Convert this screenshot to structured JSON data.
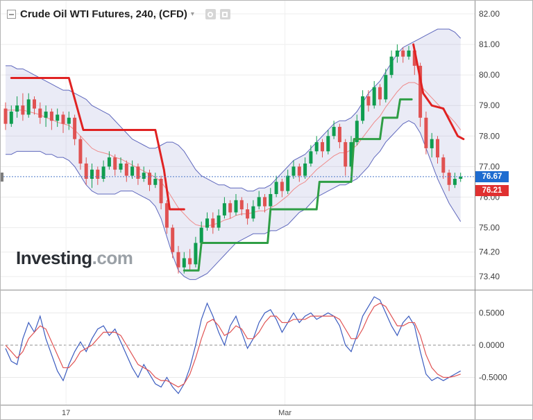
{
  "header": {
    "title": "Crude Oil WTI Futures, 240, (CFD)",
    "caret": "▾"
  },
  "watermark": {
    "brand": "Investing",
    "suffix": ".com"
  },
  "price_axis": {
    "labels": [
      {
        "text": "82.00",
        "value": 82.0
      },
      {
        "text": "81.00",
        "value": 81.0
      },
      {
        "text": "80.00",
        "value": 80.0
      },
      {
        "text": "79.00",
        "value": 79.0
      },
      {
        "text": "78.00",
        "value": 78.0
      },
      {
        "text": "77.00",
        "value": 77.0
      },
      {
        "text": "76.00",
        "value": 76.0
      },
      {
        "text": "75.00",
        "value": 75.0
      },
      {
        "text": "74.20",
        "value": 74.2
      },
      {
        "text": "73.40",
        "value": 73.4
      }
    ],
    "last_tag": {
      "text": "76.67",
      "value": 76.67,
      "color": "#1e6cd0"
    },
    "secondary_tag": {
      "text": "76.21",
      "value": 76.21,
      "color": "#e03030"
    }
  },
  "oscillator_axis": {
    "labels": [
      {
        "text": "0.5000",
        "value": 0.5
      },
      {
        "text": "0.0000",
        "value": 0
      },
      {
        "text": "-0.5000",
        "value": -0.5
      }
    ]
  },
  "time_axis": {
    "labels": [
      {
        "text": "17",
        "index": 10.5
      },
      {
        "text": "Mar",
        "index": 48.5
      }
    ]
  },
  "chart_data": {
    "type": "candlestick",
    "title": "Crude Oil WTI Futures, 240, (CFD)",
    "instrument": "Crude Oil WTI Futures",
    "interval": "240",
    "market": "CFD",
    "colors": {
      "up": "#0f9d4f",
      "down": "#e05252",
      "band_line": "#5f68bd",
      "band_fill": "rgba(95,104,189,0.13)",
      "mid_line": "#ef8a8a",
      "trend_red": "#e02222",
      "trend_green": "#2f9e45",
      "last_line": "#4a78c9"
    },
    "panes": [
      {
        "name": "price",
        "ylim": [
          72.9,
          82.4
        ],
        "gridline_prices": [
          82.0,
          81.0,
          80.0,
          79.0,
          78.0,
          77.0,
          76.0,
          75.0,
          74.2,
          73.4
        ],
        "last_price": 76.67,
        "secondary_price": 76.21,
        "candles": [
          [
            78.9,
            79.1,
            78.2,
            78.4
          ],
          [
            78.4,
            79.0,
            78.3,
            78.8
          ],
          [
            78.8,
            79.3,
            78.6,
            79.0
          ],
          [
            79.0,
            79.4,
            78.5,
            78.7
          ],
          [
            78.7,
            79.4,
            78.6,
            79.2
          ],
          [
            79.2,
            79.3,
            78.7,
            78.9
          ],
          [
            78.9,
            79.1,
            78.4,
            78.6
          ],
          [
            78.6,
            79.0,
            78.3,
            78.8
          ],
          [
            78.8,
            78.9,
            78.2,
            78.5
          ],
          [
            78.5,
            78.9,
            78.3,
            78.7
          ],
          [
            78.7,
            78.8,
            78.1,
            78.4
          ],
          [
            78.4,
            78.8,
            78.2,
            78.6
          ],
          [
            78.6,
            78.7,
            77.7,
            77.9
          ],
          [
            77.9,
            78.0,
            76.9,
            77.1
          ],
          [
            77.1,
            77.3,
            76.4,
            76.6
          ],
          [
            76.6,
            77.1,
            76.3,
            76.9
          ],
          [
            76.9,
            77.0,
            76.4,
            76.6
          ],
          [
            76.6,
            77.2,
            76.5,
            77.0
          ],
          [
            77.0,
            77.5,
            76.9,
            77.3
          ],
          [
            77.3,
            77.4,
            76.7,
            76.9
          ],
          [
            76.9,
            77.3,
            76.8,
            77.1
          ],
          [
            77.1,
            77.2,
            76.5,
            76.7
          ],
          [
            76.7,
            77.2,
            76.6,
            77.0
          ],
          [
            77.0,
            77.1,
            76.4,
            76.6
          ],
          [
            76.6,
            77.0,
            76.5,
            76.8
          ],
          [
            76.8,
            76.9,
            76.2,
            76.4
          ],
          [
            76.4,
            76.8,
            76.3,
            76.6
          ],
          [
            76.6,
            76.7,
            75.6,
            75.8
          ],
          [
            75.8,
            75.9,
            74.8,
            75.0
          ],
          [
            75.0,
            75.1,
            74.0,
            74.2
          ],
          [
            74.2,
            74.4,
            73.5,
            73.7
          ],
          [
            73.7,
            74.2,
            73.5,
            74.0
          ],
          [
            74.0,
            74.3,
            73.6,
            73.8
          ],
          [
            73.8,
            74.7,
            73.7,
            74.5
          ],
          [
            74.5,
            75.2,
            74.4,
            75.0
          ],
          [
            75.0,
            75.5,
            74.9,
            75.3
          ],
          [
            75.3,
            75.5,
            74.8,
            75.0
          ],
          [
            75.0,
            75.6,
            74.9,
            75.4
          ],
          [
            75.4,
            76.0,
            75.3,
            75.8
          ],
          [
            75.8,
            75.9,
            75.3,
            75.5
          ],
          [
            75.5,
            76.1,
            75.4,
            75.9
          ],
          [
            75.9,
            76.0,
            75.4,
            75.6
          ],
          [
            75.6,
            75.8,
            75.1,
            75.3
          ],
          [
            75.3,
            75.9,
            75.2,
            75.7
          ],
          [
            75.7,
            76.2,
            75.6,
            76.0
          ],
          [
            76.0,
            76.1,
            75.5,
            75.7
          ],
          [
            75.7,
            76.3,
            75.6,
            76.1
          ],
          [
            76.1,
            76.7,
            76.0,
            76.5
          ],
          [
            76.5,
            76.6,
            76.0,
            76.2
          ],
          [
            76.2,
            76.9,
            76.1,
            76.7
          ],
          [
            76.7,
            77.2,
            76.6,
            77.0
          ],
          [
            77.0,
            77.1,
            76.5,
            76.7
          ],
          [
            76.7,
            77.3,
            76.6,
            77.1
          ],
          [
            77.1,
            77.7,
            77.0,
            77.5
          ],
          [
            77.5,
            78.0,
            77.4,
            77.8
          ],
          [
            77.8,
            77.9,
            77.3,
            77.5
          ],
          [
            77.5,
            78.2,
            77.4,
            78.0
          ],
          [
            78.0,
            78.5,
            77.9,
            78.3
          ],
          [
            78.3,
            78.4,
            77.6,
            77.8
          ],
          [
            77.8,
            77.9,
            76.7,
            77.0
          ],
          [
            77.0,
            78.0,
            76.9,
            77.8
          ],
          [
            77.8,
            78.7,
            77.7,
            78.5
          ],
          [
            78.5,
            79.5,
            78.4,
            79.3
          ],
          [
            79.3,
            79.5,
            78.8,
            79.0
          ],
          [
            79.0,
            79.8,
            78.9,
            79.6
          ],
          [
            79.6,
            79.7,
            79.0,
            79.2
          ],
          [
            79.2,
            80.2,
            79.1,
            80.0
          ],
          [
            80.0,
            80.8,
            79.9,
            80.6
          ],
          [
            80.6,
            81.0,
            80.4,
            80.8
          ],
          [
            80.8,
            80.9,
            80.4,
            80.6
          ],
          [
            80.6,
            80.95,
            80.5,
            80.8
          ],
          [
            80.8,
            80.9,
            80.0,
            80.3
          ],
          [
            80.3,
            80.4,
            78.3,
            78.6
          ],
          [
            78.6,
            78.8,
            77.4,
            77.6
          ],
          [
            77.6,
            78.1,
            77.3,
            77.9
          ],
          [
            77.9,
            78.0,
            77.1,
            77.3
          ],
          [
            77.3,
            77.4,
            76.6,
            76.8
          ],
          [
            76.8,
            76.9,
            76.2,
            76.4
          ],
          [
            76.4,
            76.8,
            76.3,
            76.6
          ],
          [
            76.6,
            76.8,
            76.5,
            76.67
          ]
        ],
        "bollinger": {
          "upper": [
            80.3,
            80.3,
            80.2,
            80.2,
            80.1,
            80.0,
            79.9,
            79.8,
            79.7,
            79.6,
            79.5,
            79.5,
            79.4,
            79.3,
            79.2,
            79.0,
            78.9,
            78.8,
            78.7,
            78.5,
            78.3,
            78.1,
            77.9,
            77.8,
            77.7,
            77.6,
            77.6,
            77.7,
            77.8,
            77.8,
            77.7,
            77.5,
            77.2,
            76.9,
            76.7,
            76.6,
            76.5,
            76.4,
            76.4,
            76.3,
            76.3,
            76.3,
            76.2,
            76.2,
            76.3,
            76.3,
            76.4,
            76.6,
            76.8,
            77.0,
            77.2,
            77.3,
            77.4,
            77.6,
            77.8,
            78.0,
            78.2,
            78.4,
            78.5,
            78.5,
            78.6,
            78.8,
            79.1,
            79.4,
            79.6,
            79.8,
            80.1,
            80.4,
            80.7,
            80.9,
            81.0,
            81.1,
            81.2,
            81.3,
            81.4,
            81.5,
            81.5,
            81.5,
            81.4,
            81.2
          ],
          "lower": [
            77.4,
            77.4,
            77.5,
            77.5,
            77.5,
            77.5,
            77.5,
            77.4,
            77.4,
            77.3,
            77.3,
            77.2,
            77.0,
            76.7,
            76.4,
            76.2,
            76.1,
            76.1,
            76.1,
            76.1,
            76.2,
            76.2,
            76.2,
            76.1,
            76.0,
            75.9,
            75.7,
            75.3,
            74.7,
            74.1,
            73.6,
            73.4,
            73.3,
            73.3,
            73.4,
            73.5,
            73.7,
            73.9,
            74.1,
            74.3,
            74.5,
            74.6,
            74.7,
            74.8,
            74.8,
            74.8,
            74.9,
            74.9,
            75.0,
            75.1,
            75.3,
            75.5,
            75.6,
            75.8,
            76.0,
            76.1,
            76.2,
            76.3,
            76.4,
            76.4,
            76.5,
            76.6,
            76.8,
            77.0,
            77.3,
            77.5,
            77.8,
            78.0,
            78.2,
            78.4,
            78.5,
            78.4,
            78.1,
            77.6,
            77.1,
            76.6,
            76.2,
            75.8,
            75.5,
            75.2
          ]
        },
        "supertrend": [
          {
            "color": "red",
            "points": [
              [
                1,
                79.9
              ],
              [
                11,
                79.9
              ],
              [
                13.5,
                78.2
              ],
              [
                26,
                78.2
              ],
              [
                27.5,
                76.9
              ],
              [
                28.5,
                75.6
              ],
              [
                31,
                75.6
              ]
            ]
          },
          {
            "color": "green",
            "points": [
              [
                31,
                73.6
              ],
              [
                33.5,
                73.6
              ],
              [
                34,
                74.5
              ],
              [
                45.5,
                74.5
              ],
              [
                46,
                75.6
              ],
              [
                54,
                75.6
              ],
              [
                54.5,
                76.5
              ],
              [
                60,
                76.5
              ],
              [
                60.5,
                77.9
              ],
              [
                65,
                77.9
              ],
              [
                65.5,
                78.6
              ],
              [
                68,
                78.6
              ],
              [
                68.5,
                79.2
              ],
              [
                70.5,
                79.2
              ]
            ]
          },
          {
            "color": "red",
            "points": [
              [
                70.8,
                81.0
              ],
              [
                72.5,
                79.4
              ],
              [
                74,
                79.0
              ],
              [
                76,
                78.9
              ],
              [
                78.5,
                78.0
              ],
              [
                79.5,
                77.9
              ]
            ]
          }
        ]
      },
      {
        "name": "oscillator",
        "ylim": [
          -0.85,
          0.85
        ],
        "gridlines": [
          0.5,
          0,
          -0.5
        ],
        "series": [
          {
            "name": "fast",
            "color": "#3a5bbf",
            "values": [
              -0.05,
              -0.25,
              -0.3,
              0.1,
              0.35,
              0.2,
              0.45,
              0.1,
              -0.15,
              -0.4,
              -0.55,
              -0.3,
              -0.1,
              0.05,
              -0.1,
              0.1,
              0.25,
              0.3,
              0.15,
              0.25,
              0.05,
              -0.15,
              -0.35,
              -0.5,
              -0.3,
              -0.45,
              -0.6,
              -0.65,
              -0.5,
              -0.65,
              -0.75,
              -0.6,
              -0.35,
              0.0,
              0.4,
              0.65,
              0.45,
              0.2,
              0.0,
              0.3,
              0.45,
              0.2,
              -0.05,
              0.1,
              0.35,
              0.5,
              0.55,
              0.4,
              0.2,
              0.35,
              0.5,
              0.35,
              0.45,
              0.5,
              0.4,
              0.45,
              0.5,
              0.45,
              0.3,
              0.0,
              -0.1,
              0.15,
              0.45,
              0.6,
              0.75,
              0.7,
              0.5,
              0.3,
              0.15,
              0.35,
              0.45,
              0.3,
              -0.1,
              -0.45,
              -0.55,
              -0.5,
              -0.55,
              -0.5,
              -0.45,
              -0.4
            ]
          },
          {
            "name": "slow",
            "color": "#e05252",
            "values": [
              0.0,
              -0.1,
              -0.2,
              -0.1,
              0.1,
              0.2,
              0.3,
              0.25,
              0.05,
              -0.15,
              -0.35,
              -0.35,
              -0.25,
              -0.1,
              -0.05,
              0.0,
              0.1,
              0.2,
              0.2,
              0.2,
              0.15,
              0.0,
              -0.15,
              -0.3,
              -0.35,
              -0.4,
              -0.5,
              -0.55,
              -0.55,
              -0.6,
              -0.65,
              -0.6,
              -0.45,
              -0.2,
              0.1,
              0.35,
              0.4,
              0.3,
              0.15,
              0.2,
              0.3,
              0.25,
              0.1,
              0.1,
              0.2,
              0.35,
              0.45,
              0.45,
              0.35,
              0.35,
              0.4,
              0.4,
              0.4,
              0.45,
              0.45,
              0.45,
              0.45,
              0.45,
              0.4,
              0.25,
              0.1,
              0.1,
              0.25,
              0.45,
              0.6,
              0.65,
              0.6,
              0.45,
              0.3,
              0.3,
              0.35,
              0.35,
              0.15,
              -0.15,
              -0.35,
              -0.45,
              -0.5,
              -0.5,
              -0.48,
              -0.45
            ]
          }
        ]
      }
    ]
  }
}
